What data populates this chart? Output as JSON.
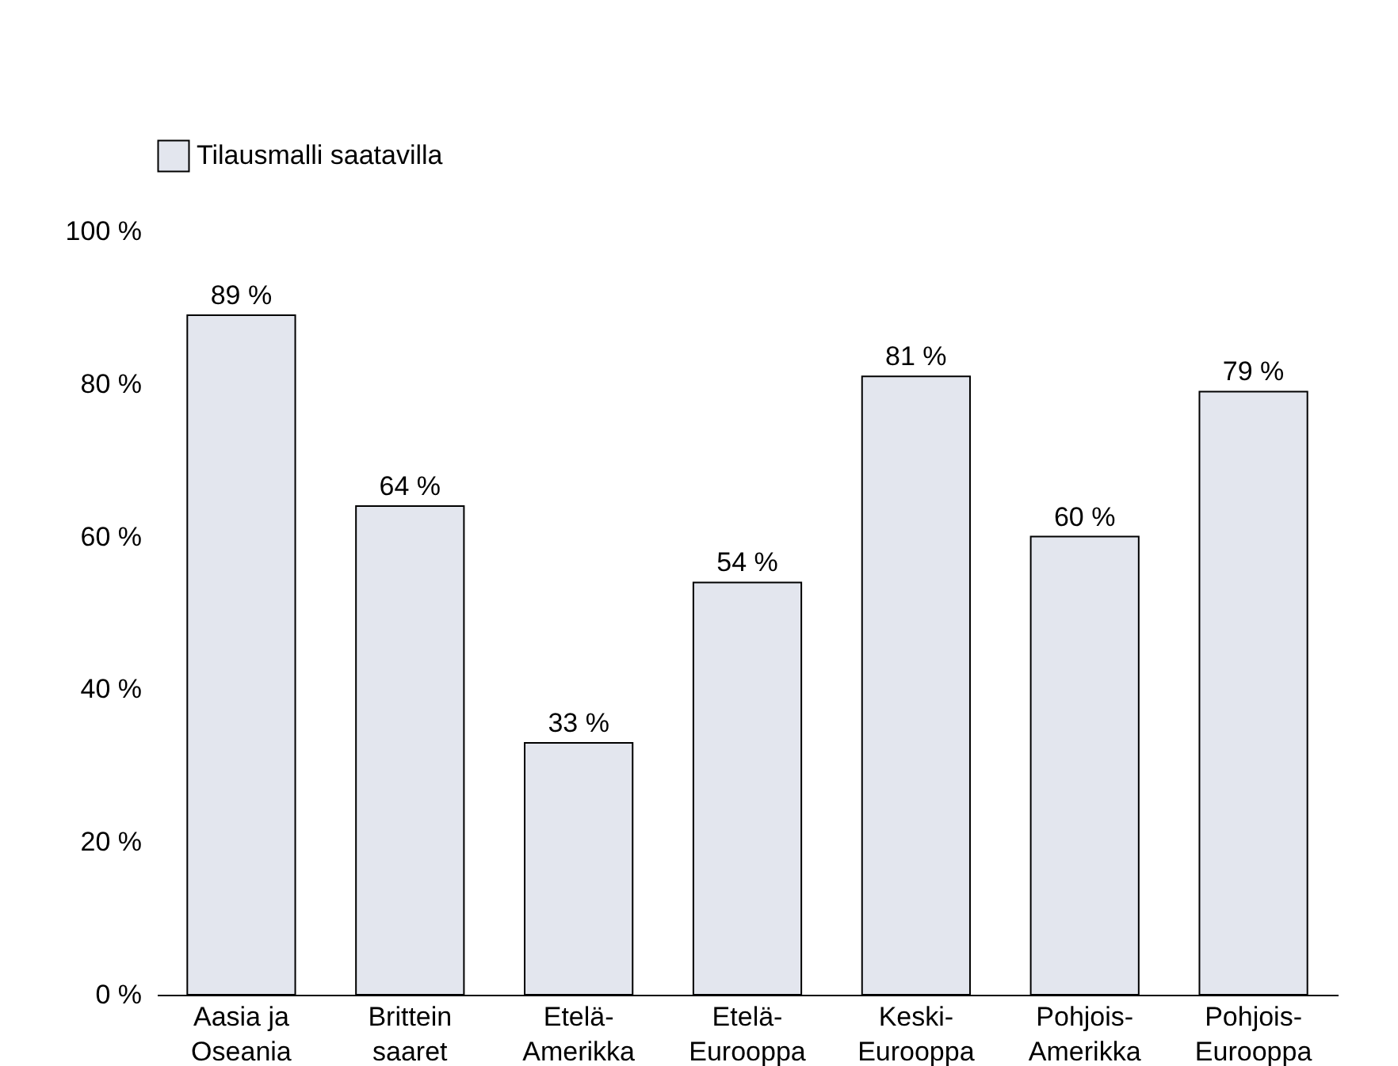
{
  "chart_data": {
    "type": "bar",
    "categories": [
      "Aasia ja Oseania",
      "Brittein saaret",
      "Etelä-Amerikka",
      "Etelä-Eurooppa",
      "Keski-Eurooppa",
      "Pohjois-Amerikka",
      "Pohjois-Eurooppa"
    ],
    "series": [
      {
        "name": "Tilausmalli saatavilla",
        "color": "#e3e6ee",
        "values": [
          89,
          64,
          33,
          54,
          81,
          60,
          79
        ],
        "value_labels": [
          "89 %",
          "64 %",
          "33 %",
          "54 %",
          "81 %",
          "60 %",
          "79 %"
        ]
      }
    ],
    "ylim": [
      0,
      100
    ],
    "yticks": [
      {
        "value": 0,
        "label": "0 %"
      },
      {
        "value": 20,
        "label": "20 %"
      },
      {
        "value": 40,
        "label": "40 %"
      },
      {
        "value": 60,
        "label": "60 %"
      },
      {
        "value": 80,
        "label": "80 %"
      },
      {
        "value": 100,
        "label": "100 %"
      }
    ],
    "grid": false,
    "legend": "top left"
  }
}
